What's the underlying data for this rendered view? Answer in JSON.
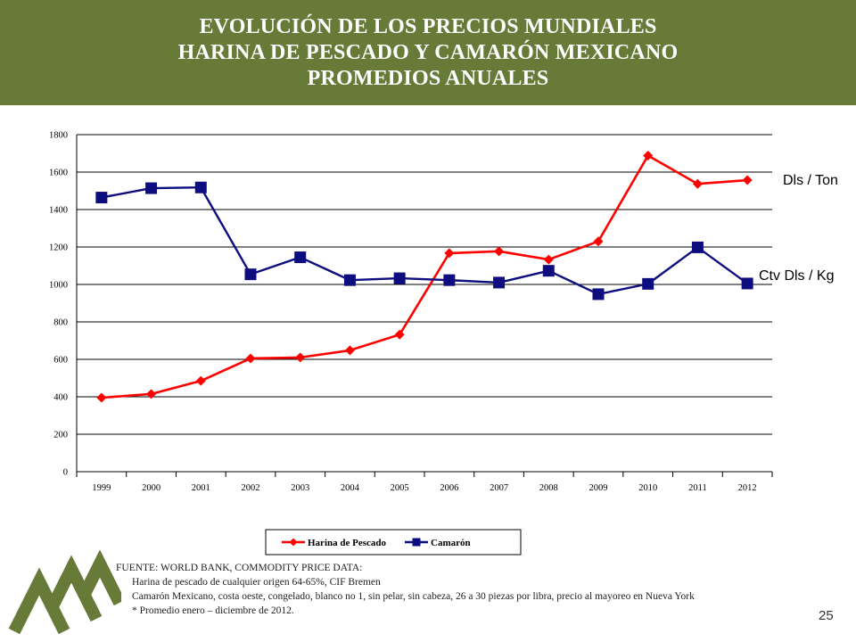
{
  "header": {
    "line1": "EVOLUCIÓN DE LOS PRECIOS MUNDIALES",
    "line2": "HARINA DE PESCADO Y CAMARÓN MEXICANO",
    "line3": "PROMEDIOS ANUALES"
  },
  "units": {
    "harina": "Dls / Ton",
    "camaron": "Ctv Dls / Kg"
  },
  "source": {
    "line1": "FUENTE: WORLD BANK, COMMODITY PRICE DATA:",
    "line2": "Harina de pescado  de cualquier origen 64-65%, CIF Bremen",
    "line3": "Camarón Mexicano, costa oeste, congelado,  blanco no 1, sin pelar, sin cabeza,  26 a 30 piezas por libra, precio al mayoreo  en Nueva York",
    "line4": "* Promedio enero – diciembre de 2012."
  },
  "page_number": "25",
  "colors": {
    "banner": "#677a38",
    "harina": "#ff0000",
    "camaron": "#0d0d7f",
    "logo": "#677a38"
  },
  "chart_data": {
    "type": "line",
    "categories": [
      "1999",
      "2000",
      "2001",
      "2002",
      "2003",
      "2004",
      "2005",
      "2006",
      "2007",
      "2008",
      "2009",
      "2010",
      "2011",
      "2012"
    ],
    "series": [
      {
        "name": "Harina de Pescado",
        "marker": "diamond",
        "values": [
          395,
          415,
          485,
          605,
          610,
          648,
          732,
          1167,
          1177,
          1133,
          1230,
          1688,
          1537,
          1557
        ]
      },
      {
        "name": "Camarón",
        "marker": "square",
        "values": [
          1464,
          1514,
          1518,
          1054,
          1145,
          1023,
          1033,
          1023,
          1010,
          1073,
          948,
          1003,
          1198,
          1005
        ]
      }
    ],
    "ylim": [
      0,
      1800
    ],
    "yticks": [
      "0",
      "200",
      "400",
      "600",
      "800",
      "1000",
      "1200",
      "1400",
      "1600",
      "1800"
    ],
    "grid": true,
    "legend": "bottom"
  }
}
